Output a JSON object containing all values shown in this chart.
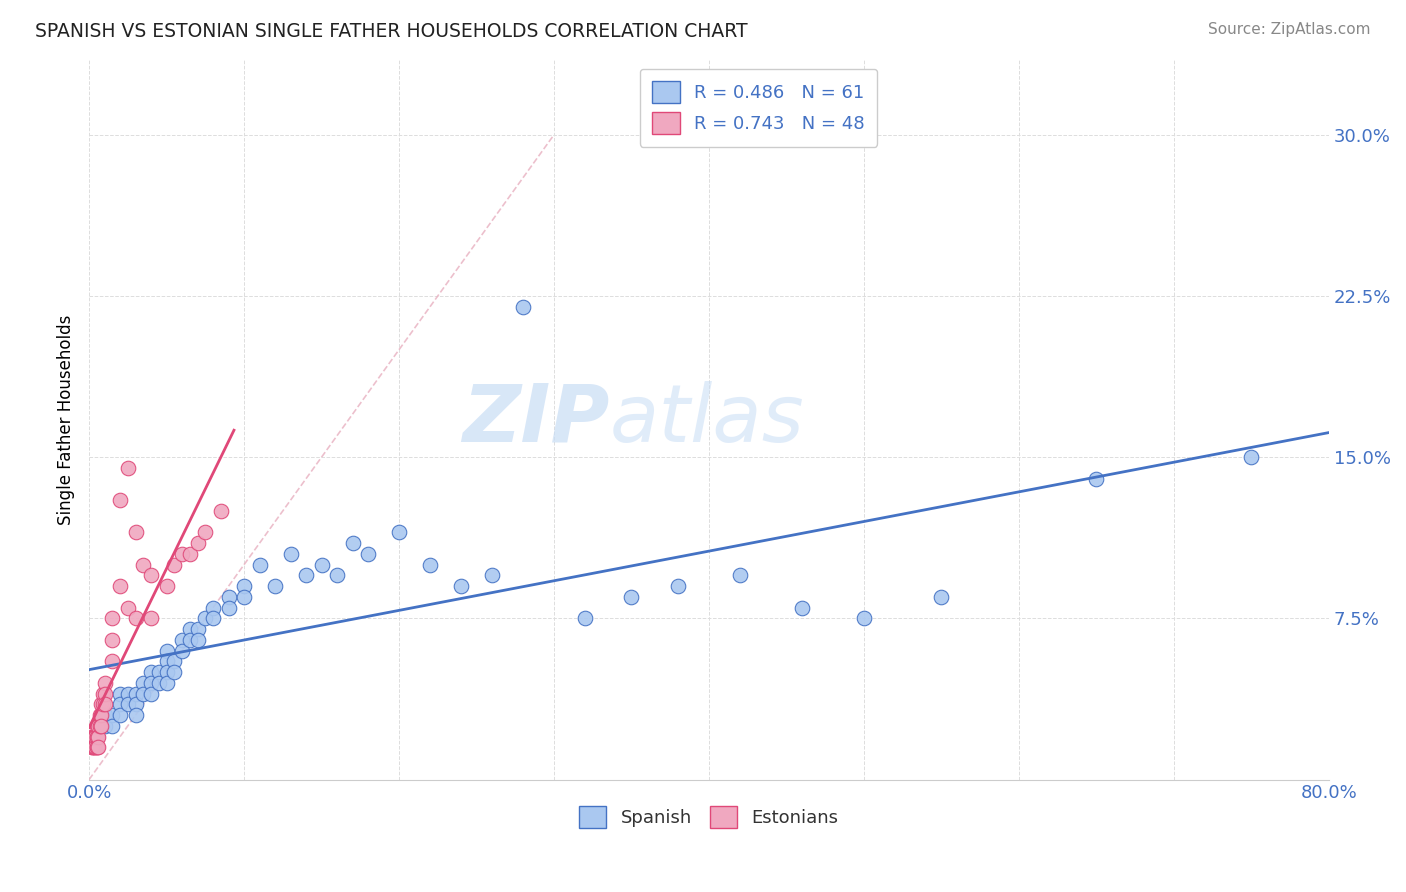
{
  "title": "SPANISH VS ESTONIAN SINGLE FATHER HOUSEHOLDS CORRELATION CHART",
  "source": "Source: ZipAtlas.com",
  "ylabel": "Single Father Households",
  "xlim": [
    0.0,
    0.8
  ],
  "ylim": [
    0.0,
    0.335
  ],
  "yticks": [
    0.0,
    0.075,
    0.15,
    0.225,
    0.3
  ],
  "ytick_labels": [
    "",
    "7.5%",
    "15.0%",
    "22.5%",
    "30.0%"
  ],
  "xticks": [
    0.0,
    0.1,
    0.2,
    0.3,
    0.4,
    0.5,
    0.6,
    0.7,
    0.8
  ],
  "xtick_labels_show": [
    "0.0%",
    "",
    "",
    "",
    "",
    "",
    "",
    "",
    "80.0%"
  ],
  "spanish_color": "#aac8f0",
  "estonian_color": "#f0a8c0",
  "trend_spanish_color": "#4472c4",
  "trend_estonian_color": "#e04878",
  "legend_line1": "R = 0.486   N = 61",
  "legend_line2": "R = 0.743   N = 48",
  "watermark_zip": "ZIP",
  "watermark_atlas": "atlas",
  "spanish_x": [
    0.005,
    0.01,
    0.01,
    0.015,
    0.015,
    0.02,
    0.02,
    0.02,
    0.025,
    0.025,
    0.03,
    0.03,
    0.03,
    0.035,
    0.035,
    0.04,
    0.04,
    0.04,
    0.045,
    0.045,
    0.05,
    0.05,
    0.05,
    0.05,
    0.055,
    0.055,
    0.06,
    0.06,
    0.065,
    0.065,
    0.07,
    0.07,
    0.075,
    0.08,
    0.08,
    0.09,
    0.09,
    0.1,
    0.1,
    0.11,
    0.12,
    0.13,
    0.14,
    0.15,
    0.16,
    0.17,
    0.18,
    0.2,
    0.22,
    0.24,
    0.26,
    0.28,
    0.32,
    0.35,
    0.38,
    0.42,
    0.46,
    0.5,
    0.55,
    0.65,
    0.75
  ],
  "spanish_y": [
    0.02,
    0.03,
    0.025,
    0.03,
    0.025,
    0.04,
    0.035,
    0.03,
    0.04,
    0.035,
    0.04,
    0.035,
    0.03,
    0.045,
    0.04,
    0.05,
    0.045,
    0.04,
    0.05,
    0.045,
    0.06,
    0.055,
    0.05,
    0.045,
    0.055,
    0.05,
    0.065,
    0.06,
    0.07,
    0.065,
    0.07,
    0.065,
    0.075,
    0.08,
    0.075,
    0.085,
    0.08,
    0.09,
    0.085,
    0.1,
    0.09,
    0.105,
    0.095,
    0.1,
    0.095,
    0.11,
    0.105,
    0.115,
    0.1,
    0.09,
    0.095,
    0.22,
    0.075,
    0.085,
    0.09,
    0.095,
    0.08,
    0.075,
    0.085,
    0.14,
    0.15
  ],
  "estonian_x": [
    0.002,
    0.002,
    0.002,
    0.002,
    0.003,
    0.003,
    0.003,
    0.003,
    0.004,
    0.004,
    0.004,
    0.005,
    0.005,
    0.005,
    0.005,
    0.005,
    0.006,
    0.006,
    0.006,
    0.007,
    0.007,
    0.008,
    0.008,
    0.008,
    0.009,
    0.009,
    0.01,
    0.01,
    0.01,
    0.015,
    0.015,
    0.015,
    0.02,
    0.02,
    0.025,
    0.025,
    0.03,
    0.03,
    0.035,
    0.04,
    0.04,
    0.05,
    0.055,
    0.06,
    0.065,
    0.07,
    0.075,
    0.085
  ],
  "estonian_y": [
    0.02,
    0.02,
    0.015,
    0.015,
    0.02,
    0.02,
    0.015,
    0.015,
    0.02,
    0.02,
    0.015,
    0.025,
    0.02,
    0.02,
    0.015,
    0.015,
    0.025,
    0.02,
    0.015,
    0.03,
    0.025,
    0.035,
    0.03,
    0.025,
    0.04,
    0.035,
    0.045,
    0.04,
    0.035,
    0.075,
    0.065,
    0.055,
    0.13,
    0.09,
    0.145,
    0.08,
    0.115,
    0.075,
    0.1,
    0.095,
    0.075,
    0.09,
    0.1,
    0.105,
    0.105,
    0.11,
    0.115,
    0.125
  ],
  "diag_color": "#e8b0c0"
}
